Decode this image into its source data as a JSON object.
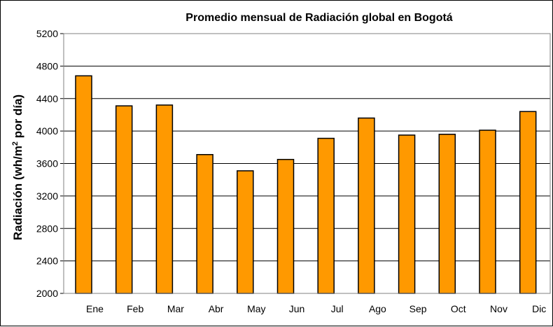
{
  "chart_data": {
    "type": "bar",
    "title": "Promedio mensual de Radiación global en Bogotá",
    "xlabel": "",
    "ylabel_main": "Radiación (wh/m",
    "ylabel_sup": "2",
    "ylabel_tail": " por día)",
    "categories": [
      "Ene",
      "Feb",
      "Mar",
      "Abr",
      "May",
      "Jun",
      "Jul",
      "Ago",
      "Sep",
      "Oct",
      "Nov",
      "Dic"
    ],
    "values": [
      4680,
      4310,
      4320,
      3710,
      3510,
      3650,
      3910,
      4160,
      3950,
      3960,
      4010,
      4240
    ],
    "yticks": [
      "2000",
      "2400",
      "2800",
      "3200",
      "3600",
      "4000",
      "4400",
      "4800",
      "5200"
    ],
    "ylim": [
      2000,
      5200
    ],
    "grid": true,
    "colors": {
      "bar": "#FF9900",
      "bar_stroke": "#000000",
      "grid": "#000000"
    }
  }
}
